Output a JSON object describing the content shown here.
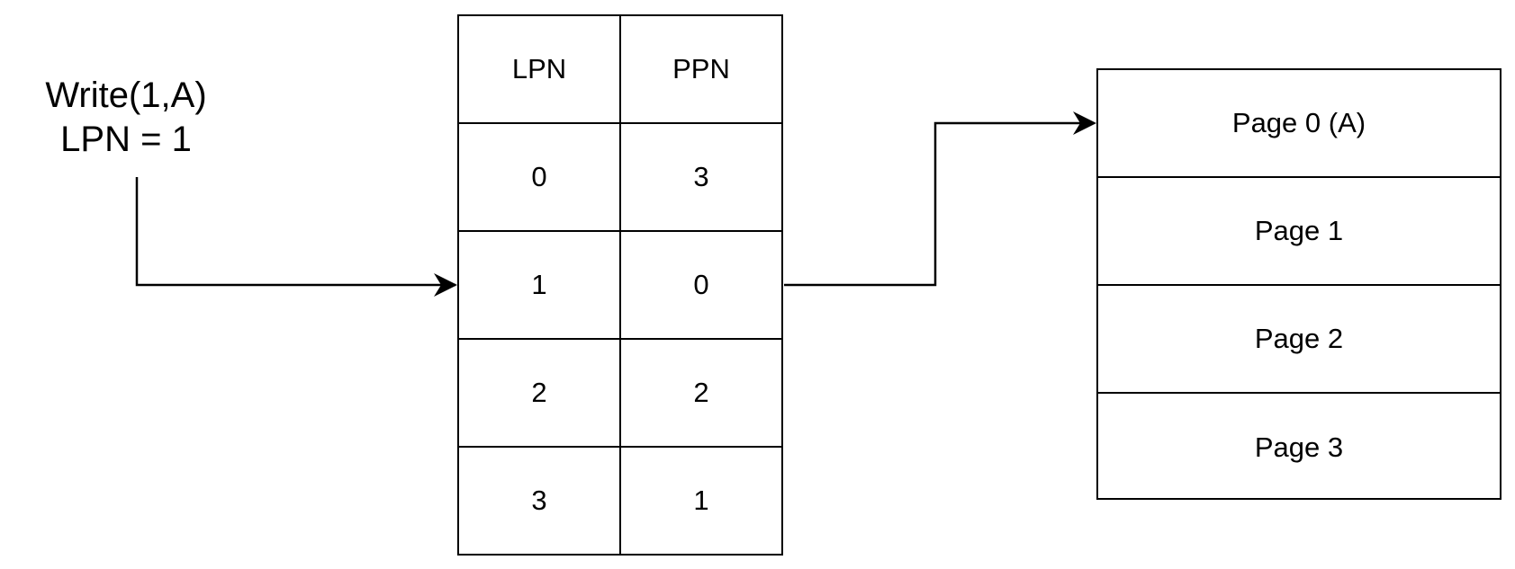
{
  "write_request": {
    "line1": "Write(1,A)",
    "line2": "LPN = 1"
  },
  "mapping_table": {
    "headers": [
      "LPN",
      "PPN"
    ],
    "rows": [
      {
        "lpn": "0",
        "ppn": "3"
      },
      {
        "lpn": "1",
        "ppn": "0"
      },
      {
        "lpn": "2",
        "ppn": "2"
      },
      {
        "lpn": "3",
        "ppn": "1"
      }
    ]
  },
  "physical_pages": [
    {
      "label": "Page 0 (A)"
    },
    {
      "label": "Page 1"
    },
    {
      "label": "Page 2"
    },
    {
      "label": "Page 3"
    }
  ]
}
